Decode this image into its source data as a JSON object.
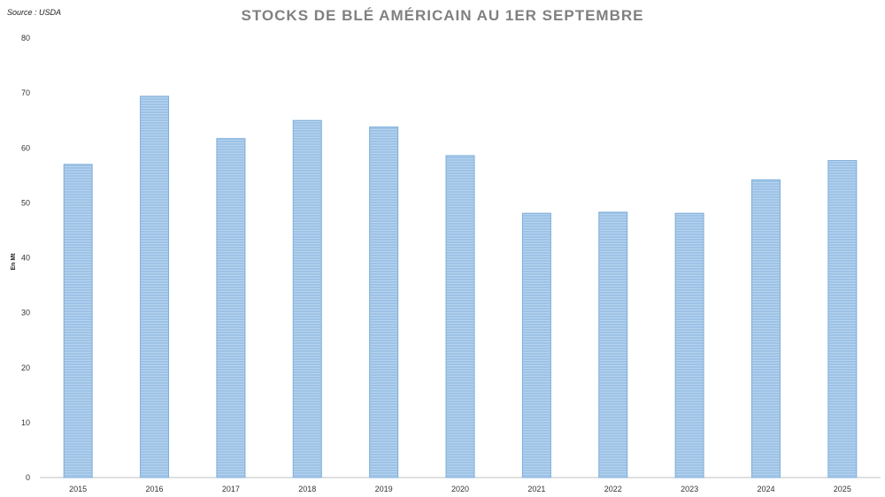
{
  "source_label": "Source : USDA",
  "chart_data": {
    "type": "bar",
    "title": "STOCKS DE BLÉ AMÉRICAIN AU 1ER SEPTEMBRE",
    "xlabel": "",
    "ylabel": "En Mt",
    "categories": [
      "2015",
      "2016",
      "2017",
      "2018",
      "2019",
      "2020",
      "2021",
      "2022",
      "2023",
      "2024",
      "2025"
    ],
    "values": [
      57.0,
      69.4,
      61.7,
      65.0,
      63.8,
      58.6,
      48.1,
      48.3,
      48.1,
      54.2,
      57.7
    ],
    "ylim": [
      0,
      80
    ],
    "yticks": [
      0,
      10,
      20,
      30,
      40,
      50,
      60,
      70,
      80
    ],
    "grid": false,
    "legend": "none",
    "bar_color": "#9dc3e6",
    "bar_stroke": "#7eaedb"
  }
}
